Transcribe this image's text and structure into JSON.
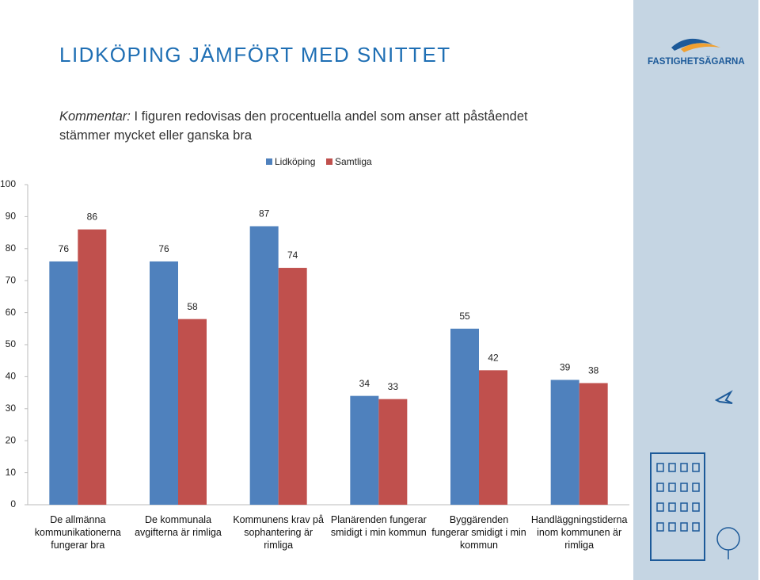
{
  "header": {
    "title": "LIDKÖPING JÄMFÖRT MED SNITTET",
    "logo": "FASTIGHETSÄGARNA"
  },
  "comment": {
    "label": "Kommentar:",
    "text": " I figuren redovisas den procentuella andel som anser att påståendet stämmer mycket eller ganska bra"
  },
  "chart_data": {
    "type": "bar",
    "categories": [
      "De allmänna kommunikationerna fungerar bra",
      "De kommunala avgifterna är rimliga",
      "Kommunens krav på sophantering är rimliga",
      "Planärenden fungerar smidigt i min kommun",
      "Byggärenden fungerar smidigt i min kommun",
      "Handläggningstiderna inom kommunen är rimliga"
    ],
    "series": [
      {
        "name": "Lidköping",
        "color": "#4f81bd",
        "values": [
          76,
          76,
          87,
          34,
          55,
          39
        ]
      },
      {
        "name": "Samtliga",
        "color": "#c0504d",
        "values": [
          86,
          58,
          74,
          33,
          42,
          38
        ]
      }
    ],
    "ylim": [
      0,
      100
    ],
    "yticks": [
      0,
      10,
      20,
      30,
      40,
      50,
      60,
      70,
      80,
      90,
      100
    ],
    "grid": false
  }
}
